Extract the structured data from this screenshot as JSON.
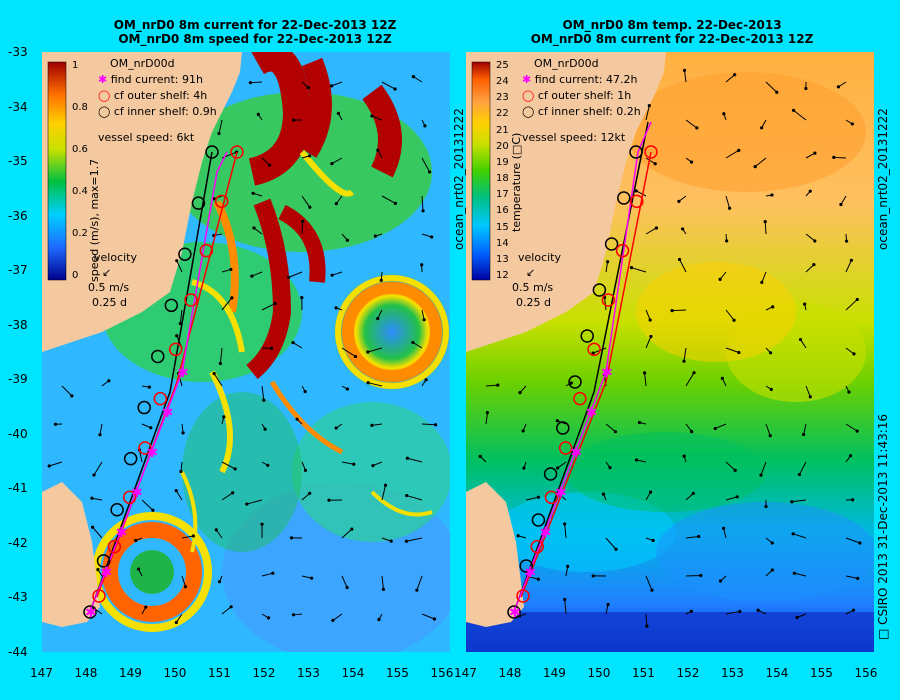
{
  "left_panel": {
    "title_line1": "OM_nrD0 8m current for 22-Dec-2013 12Z",
    "title_line2": "OM_nrD0 8m speed for 22-Dec-2013 12Z",
    "model_name": "OM_nrD00d",
    "legend": {
      "find_current": "find current: 91h",
      "outer_shelf": "cf outer shelf: 4h",
      "inner_shelf": "cf inner shelf: 0.9h"
    },
    "vessel_speed": "vessel speed: 6kt",
    "colorbar_label": "speed (m/s),  max=1.7",
    "colorbar_ticks": [
      "1",
      "0.8",
      "0.6",
      "0.4",
      "0.2",
      "0"
    ],
    "velocity_title": "velocity",
    "velocity_scale": "0.5 m/s",
    "velocity_time": "0.25 d",
    "side_label": "ocean_nrt02_20131222"
  },
  "right_panel": {
    "title_line1": "OM_nrD0 8m temp. 22-Dec-2013",
    "title_line2": "OM_nrD0 8m current for 22-Dec-2013 12Z",
    "model_name": "OM_nrD00d",
    "legend": {
      "find_current": "find current: 47.2h",
      "outer_shelf": "cf outer shelf: 1h",
      "inner_shelf": "cf inner shelf: 0.2h"
    },
    "vessel_speed": "vessel speed: 12kt",
    "colorbar_label": "temperature (□C)",
    "colorbar_ticks": [
      "25",
      "24",
      "23",
      "22",
      "21",
      "20",
      "19",
      "18",
      "17",
      "16",
      "15",
      "14",
      "13",
      "12"
    ],
    "velocity_title": "velocity",
    "velocity_scale": "0.5 m/s",
    "velocity_time": "0.25 d",
    "side_label": "ocean_nrt02_20131222",
    "footer_label": "□ CSIRO 2013   31-Dec-2013 11:43:16"
  },
  "axes": {
    "y_ticks": [
      "-33",
      "-34",
      "-35",
      "-36",
      "-37",
      "-38",
      "-39",
      "-40",
      "-41",
      "-42",
      "-43",
      "-44"
    ],
    "x_ticks": [
      "147",
      "148",
      "149",
      "150",
      "151",
      "152",
      "153",
      "154",
      "155",
      "156"
    ]
  },
  "colors": {
    "background": "#00e5ff",
    "land": "#f5c9a0",
    "find_current": "#ff00ff",
    "outer_shelf": "#ff0000",
    "inner_shelf": "#000000"
  }
}
